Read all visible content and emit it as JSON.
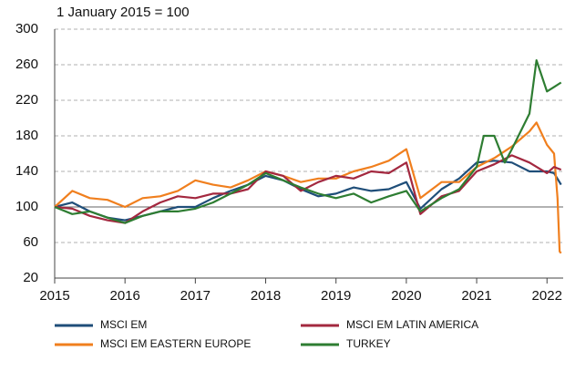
{
  "chart_data": {
    "type": "line",
    "subtitle": "1 January 2015 = 100",
    "xlim": [
      2015,
      2022.23
    ],
    "xticks": [
      2015,
      2016,
      2017,
      2018,
      2019,
      2020,
      2021,
      2022
    ],
    "ylim": [
      20,
      300
    ],
    "yticks": [
      20,
      60,
      100,
      140,
      180,
      220,
      260,
      300
    ],
    "grid": true,
    "baseline": 100,
    "legend": "bottom",
    "series": [
      {
        "name": "MSCI EM",
        "color": "#1f4e79",
        "x": [
          2015,
          2015.25,
          2015.5,
          2015.75,
          2016,
          2016.25,
          2016.5,
          2016.75,
          2017,
          2017.25,
          2017.5,
          2017.75,
          2018,
          2018.25,
          2018.5,
          2018.75,
          2019,
          2019.25,
          2019.5,
          2019.75,
          2020,
          2020.2,
          2020.5,
          2020.75,
          2021,
          2021.25,
          2021.5,
          2021.75,
          2022,
          2022.1,
          2022.2
        ],
        "values": [
          100,
          105,
          95,
          88,
          85,
          90,
          95,
          100,
          100,
          110,
          118,
          125,
          135,
          130,
          120,
          112,
          115,
          122,
          118,
          120,
          128,
          98,
          120,
          132,
          150,
          152,
          150,
          140,
          140,
          138,
          125
        ]
      },
      {
        "name": "MSCI EM EASTERN EUROPE",
        "color": "#f07f1e",
        "x": [
          2015,
          2015.25,
          2015.5,
          2015.75,
          2016,
          2016.25,
          2016.5,
          2016.75,
          2017,
          2017.25,
          2017.5,
          2017.75,
          2018,
          2018.25,
          2018.5,
          2018.75,
          2019,
          2019.25,
          2019.5,
          2019.75,
          2020,
          2020.2,
          2020.5,
          2020.75,
          2021,
          2021.25,
          2021.5,
          2021.75,
          2021.85,
          2022,
          2022.1,
          2022.15,
          2022.18,
          2022.2
        ],
        "values": [
          100,
          118,
          110,
          108,
          100,
          110,
          112,
          118,
          130,
          125,
          122,
          130,
          140,
          135,
          128,
          132,
          132,
          140,
          145,
          152,
          165,
          110,
          128,
          128,
          145,
          155,
          168,
          185,
          195,
          170,
          160,
          110,
          50,
          48
        ]
      },
      {
        "name": "MSCI EM LATIN AMERICA",
        "color": "#a3283f",
        "x": [
          2015,
          2015.25,
          2015.5,
          2015.75,
          2016,
          2016.25,
          2016.5,
          2016.75,
          2017,
          2017.25,
          2017.5,
          2017.75,
          2018,
          2018.25,
          2018.5,
          2018.75,
          2019,
          2019.25,
          2019.5,
          2019.75,
          2020,
          2020.2,
          2020.5,
          2020.75,
          2021,
          2021.25,
          2021.5,
          2021.75,
          2022,
          2022.1,
          2022.2
        ],
        "values": [
          100,
          98,
          90,
          85,
          82,
          95,
          105,
          112,
          110,
          115,
          115,
          120,
          140,
          135,
          118,
          128,
          135,
          132,
          140,
          138,
          150,
          92,
          112,
          118,
          140,
          148,
          158,
          150,
          138,
          145,
          142
        ]
      },
      {
        "name": "TURKEY",
        "color": "#2e7d32",
        "x": [
          2015,
          2015.25,
          2015.5,
          2015.75,
          2016,
          2016.25,
          2016.5,
          2016.75,
          2017,
          2017.25,
          2017.5,
          2017.75,
          2018,
          2018.25,
          2018.5,
          2018.75,
          2019,
          2019.25,
          2019.5,
          2019.75,
          2020,
          2020.2,
          2020.5,
          2020.75,
          2021,
          2021.1,
          2021.25,
          2021.4,
          2021.5,
          2021.75,
          2021.85,
          2022,
          2022.1,
          2022.2
        ],
        "values": [
          100,
          92,
          95,
          88,
          82,
          90,
          95,
          95,
          98,
          105,
          115,
          125,
          138,
          130,
          122,
          115,
          110,
          115,
          105,
          112,
          118,
          95,
          110,
          120,
          145,
          180,
          180,
          150,
          165,
          205,
          265,
          230,
          235,
          240
        ]
      }
    ]
  }
}
